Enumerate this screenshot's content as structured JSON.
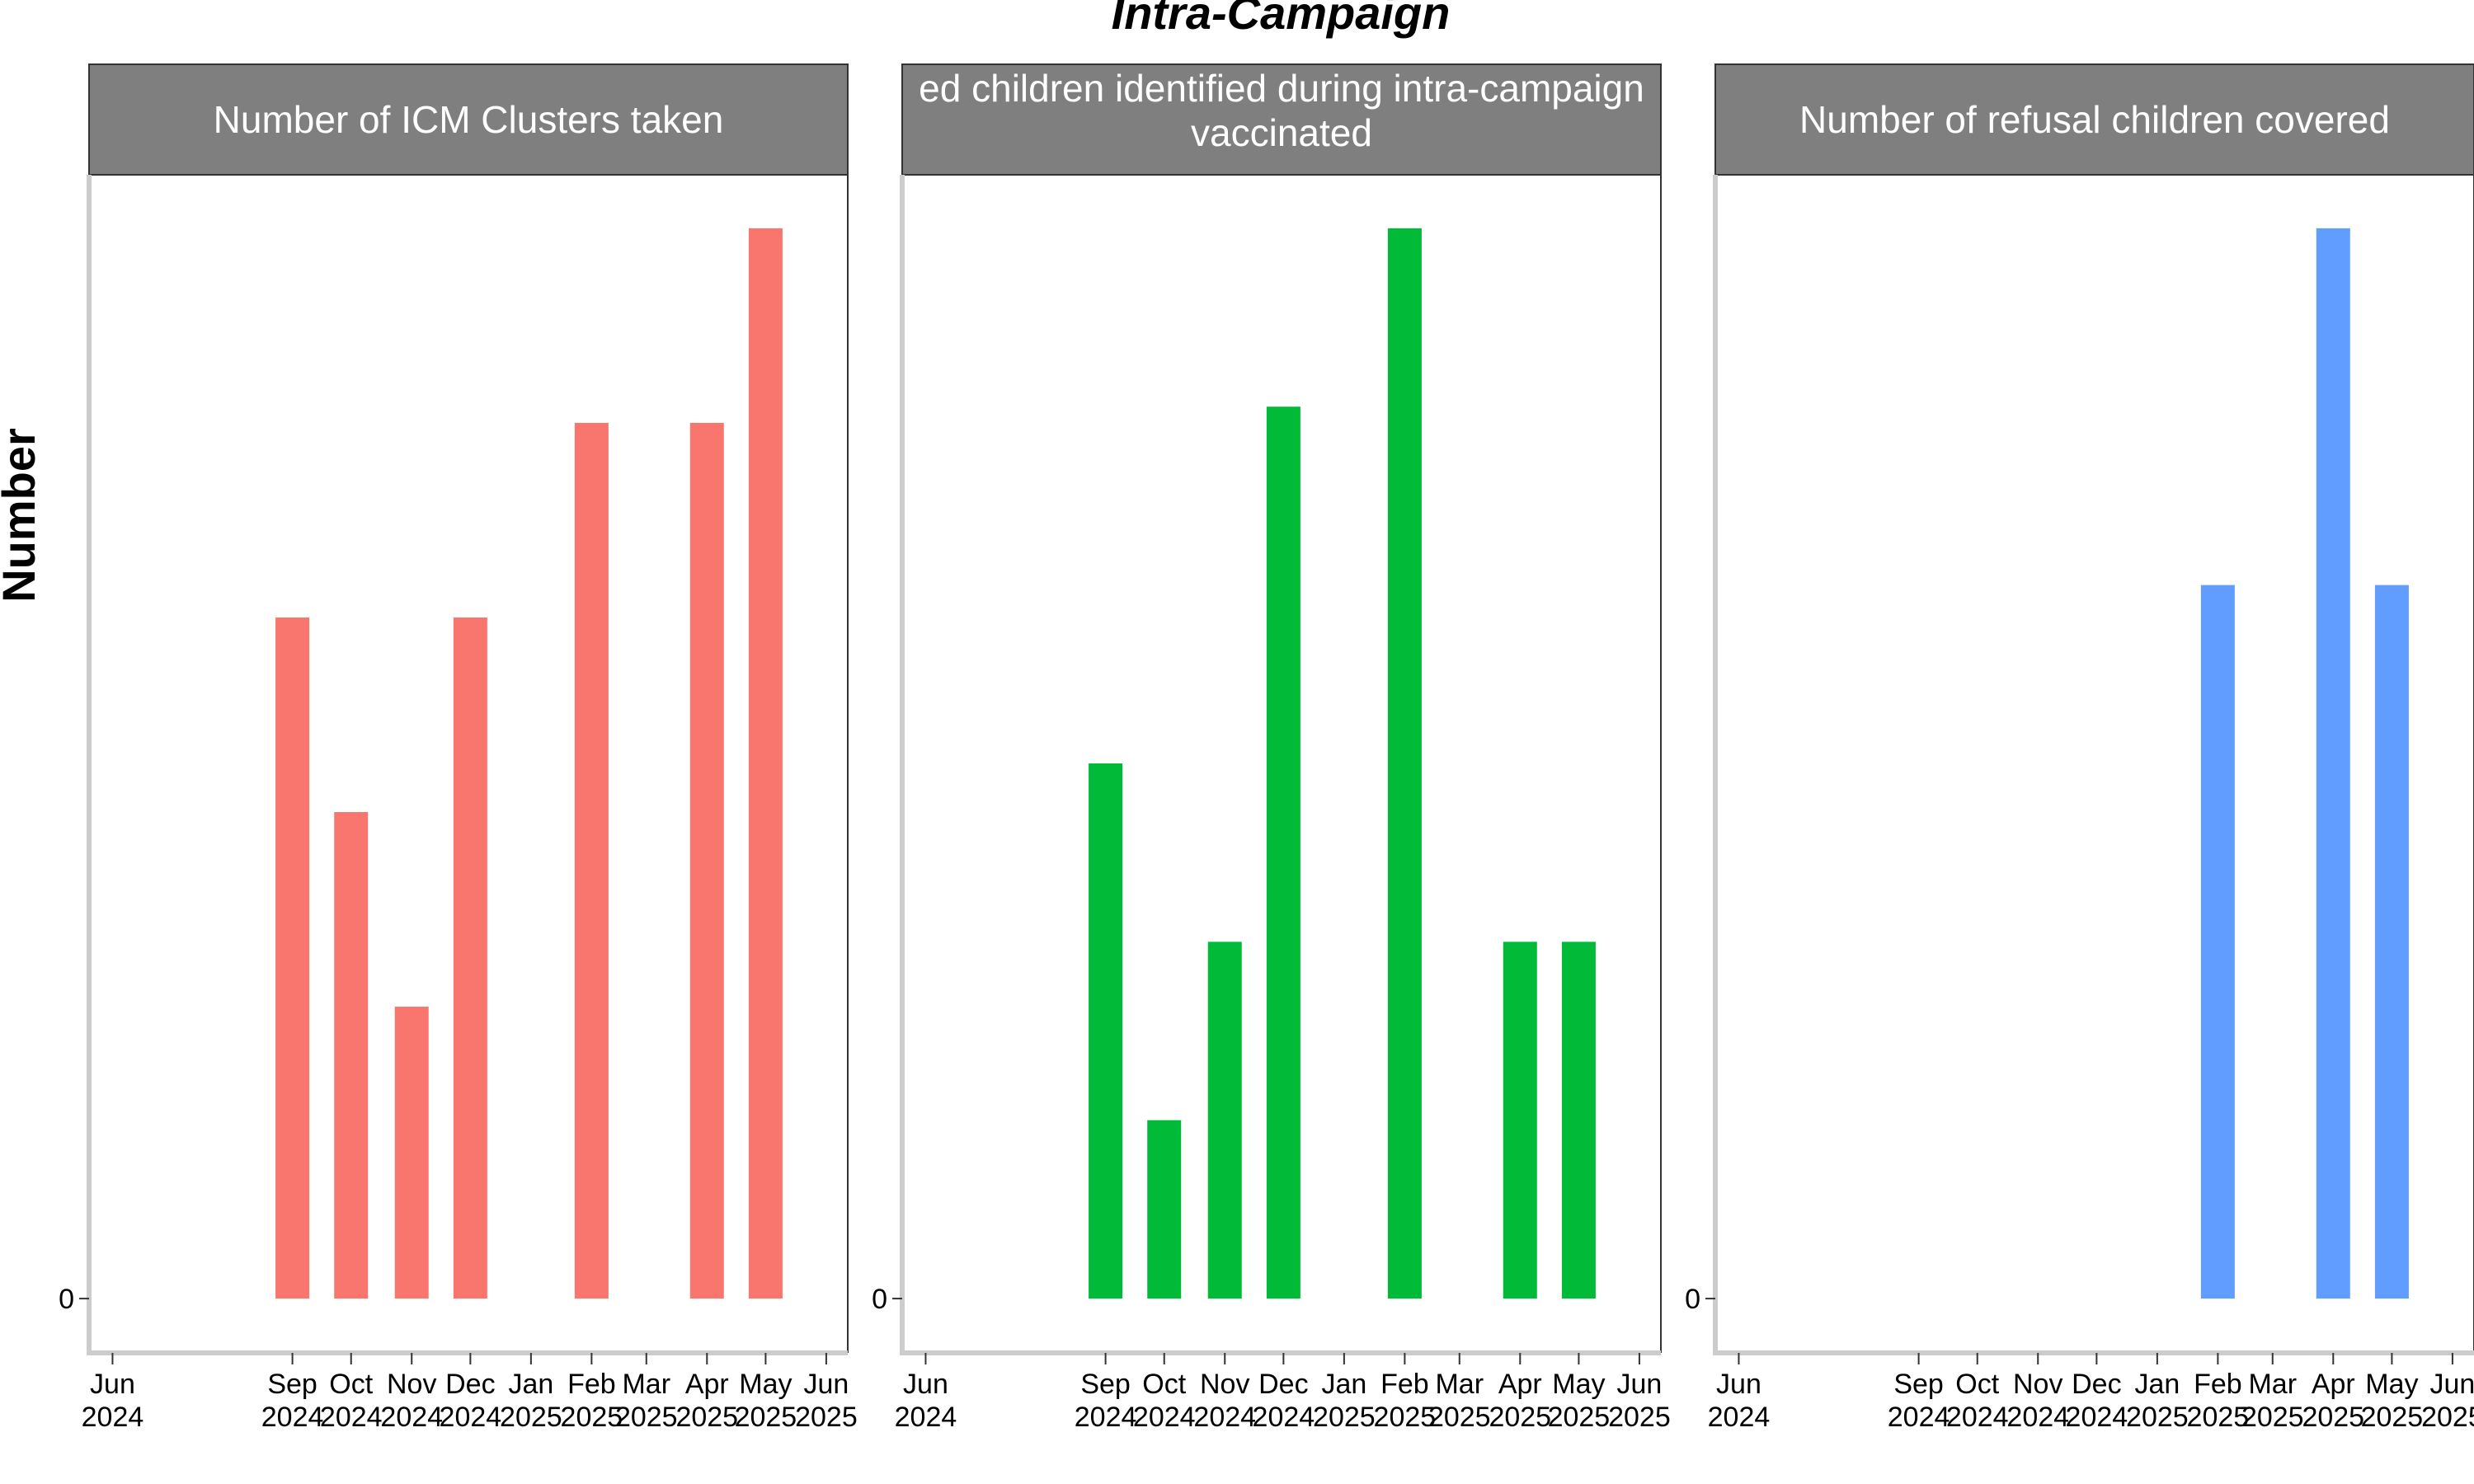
{
  "chart_data": {
    "type": "bar",
    "title": "Intra-Campaign",
    "ylabel": "Number",
    "y_tick_labels": [
      "0"
    ],
    "x_ticks": [
      {
        "month": "Jun",
        "year": "2024"
      },
      {
        "month": "Sep",
        "year": "2024"
      },
      {
        "month": "Oct",
        "year": "2024"
      },
      {
        "month": "Nov",
        "year": "2024"
      },
      {
        "month": "Dec",
        "year": "2024"
      },
      {
        "month": "Jan",
        "year": "2025"
      },
      {
        "month": "Feb",
        "year": "2025"
      },
      {
        "month": "Mar",
        "year": "2025"
      },
      {
        "month": "Apr",
        "year": "2025"
      },
      {
        "month": "May",
        "year": "2025"
      },
      {
        "month": "Jun",
        "year": "2025"
      }
    ],
    "panels": [
      {
        "strip_lines": [
          "Number of ICM Clusters taken"
        ],
        "color": "#F8766D",
        "bars": [
          {
            "x": "2024-09",
            "value": 7
          },
          {
            "x": "2024-10",
            "value": 5
          },
          {
            "x": "2024-11",
            "value": 3
          },
          {
            "x": "2024-12",
            "value": 7
          },
          {
            "x": "2025-02",
            "value": 9
          },
          {
            "x": "2025-04",
            "value": 9
          },
          {
            "x": "2025-05",
            "value": 11
          }
        ],
        "ylim": [
          -0.55,
          11.55
        ]
      },
      {
        "strip_lines": [
          "ed children identified during intra-campaign",
          "vaccinated"
        ],
        "color": "#00BA38",
        "bars": [
          {
            "x": "2024-09",
            "value": 6
          },
          {
            "x": "2024-10",
            "value": 2
          },
          {
            "x": "2024-11",
            "value": 4
          },
          {
            "x": "2024-12",
            "value": 10
          },
          {
            "x": "2025-02",
            "value": 12
          },
          {
            "x": "2025-04",
            "value": 4
          },
          {
            "x": "2025-05",
            "value": 4
          }
        ],
        "ylim": [
          -0.6,
          12.6
        ]
      },
      {
        "strip_lines": [
          "Number of refusal children covered"
        ],
        "color": "#619CFF",
        "bars": [
          {
            "x": "2025-02",
            "value": 2
          },
          {
            "x": "2025-04",
            "value": 3
          },
          {
            "x": "2025-05",
            "value": 2
          }
        ],
        "ylim": [
          -0.15,
          3.15
        ]
      }
    ]
  }
}
